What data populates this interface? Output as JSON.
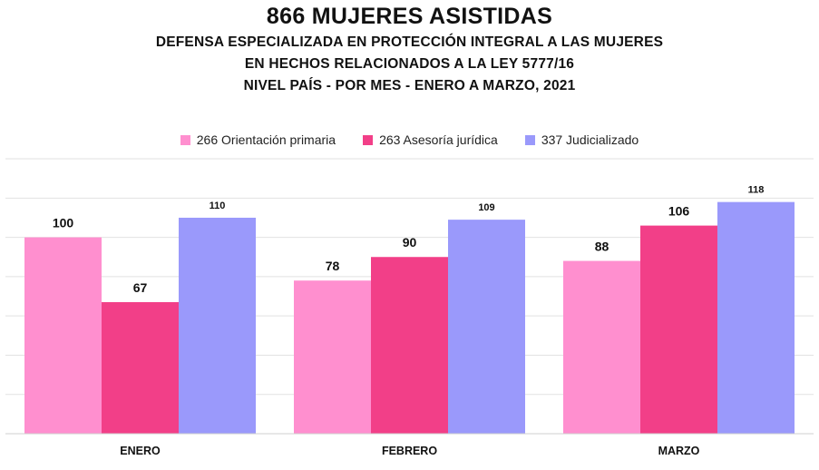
{
  "title": "866 MUJERES ASISTIDAS",
  "subtitle_lines": [
    "DEFENSA ESPECIALIZADA EN PROTECCIÓN INTEGRAL A LAS MUJERES",
    "EN HECHOS RELACIONADOS A LA LEY 5777/16",
    "NIVEL PAÍS - POR MES - ENERO A MARZO, 2021"
  ],
  "chart_data": {
    "type": "bar",
    "title": "866 MUJERES ASISTIDAS",
    "categories": [
      "ENERO",
      "FEBRERO",
      "MARZO"
    ],
    "series": [
      {
        "name": "266 Orientación primaria",
        "values": [
          100,
          78,
          88
        ],
        "color": "#ff8fcf"
      },
      {
        "name": "263 Asesoría jurídica",
        "values": [
          67,
          90,
          106
        ],
        "color": "#f23f88"
      },
      {
        "name": "337 Judicializado",
        "values": [
          110,
          109,
          118
        ],
        "color": "#9a99fb"
      }
    ],
    "ylim": [
      0,
      140
    ],
    "grid": true,
    "legend": "top-center",
    "xlabel": "",
    "ylabel": ""
  }
}
